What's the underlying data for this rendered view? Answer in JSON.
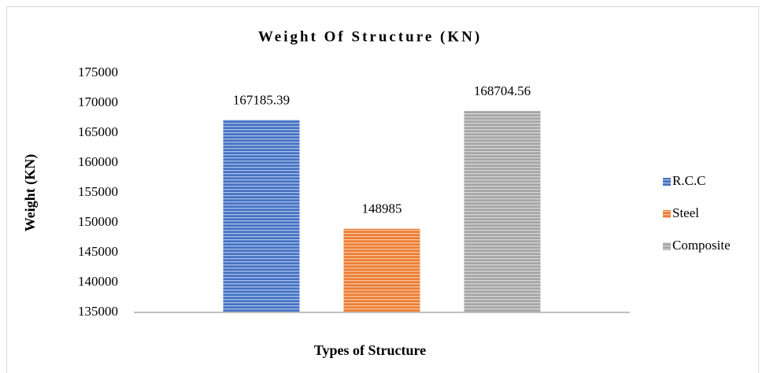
{
  "chart_data": {
    "type": "bar",
    "title": "Weight Of Structure (KN)",
    "x_label": "Types of Structure",
    "y_label": "Weight (KN)",
    "categories": [
      null
    ],
    "series": [
      {
        "name": "R.C.C",
        "color": "#4472c4",
        "values": [
          167185.39
        ]
      },
      {
        "name": "Steel",
        "color": "#ed7d31",
        "values": [
          148985
        ]
      },
      {
        "name": "Composite",
        "color": "#a5a5a5",
        "values": [
          168704.56
        ]
      }
    ],
    "ylim": [
      135000,
      175000
    ],
    "yticks": [
      135000,
      140000,
      145000,
      150000,
      155000,
      160000,
      165000,
      170000,
      175000
    ],
    "grid": false,
    "legend": "right",
    "data_labels": true
  }
}
